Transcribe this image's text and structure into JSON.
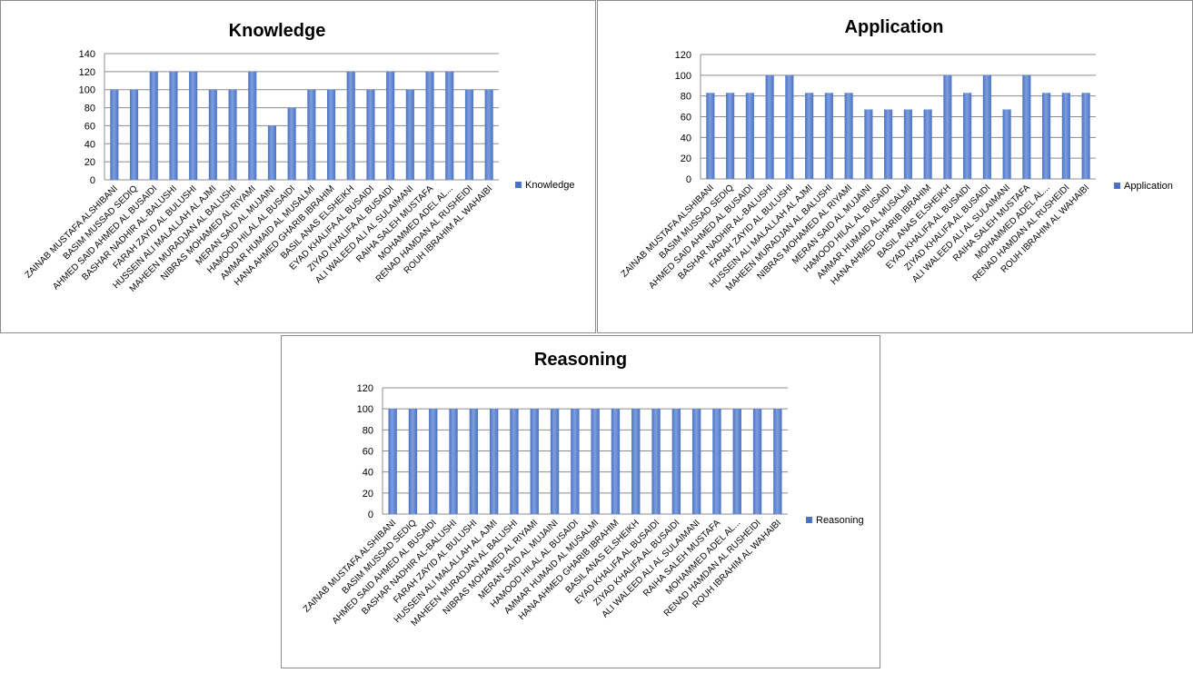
{
  "colors": {
    "bar": "#4a72c6",
    "bar_light": "#7f9fdc",
    "grid": "#8c8c8c"
  },
  "chart_data": [
    {
      "type": "bar",
      "title": "Knowledge",
      "series": [
        {
          "name": "Knowledge",
          "values": [
            100,
            100,
            120,
            120,
            120,
            100,
            100,
            120,
            60,
            80,
            100,
            100,
            120,
            100,
            120,
            100,
            120,
            120,
            100,
            100
          ]
        }
      ],
      "categories": [
        "ZAINAB MUSTAFA ALSHIBANI",
        "BASIM MUSSAD  SEDIQ",
        "AHMED SAID AHMED  AL BUSAIDI",
        "BASHAR NADHIR  AL-BALUSHI",
        "FARAH ZAYID AL BULUSHI",
        "HUSSEIN ALI MALALLAH AL AJMI",
        "MAHEEN MURADJAN  AL BALUSHI",
        "NIBRAS MOHAMED  AL RIYAMI",
        "MERAN SAID AL MUJAINI",
        "HAMOOD HILAL  AL BUSAIDI",
        "AMMAR HUMAID AL MUSALMI",
        "HANA AHMED GHARIB IBRAHIM",
        "BASIL ANAS  ELSHEIKH",
        "EYAD KHALIFA  AL BUSAIDI",
        "ZIYAD KHALIFA  AL BUSAIDI",
        "ALI WALEED ALI  AL SULAIMANI",
        "RAIHA SALEH MUSTAFA",
        "MOHAMMED ADEL  AL...",
        "RENAD HAMDAN  AL RUSHEIDI",
        "ROUH IBRAHIM  AL WAHAIBI"
      ],
      "y_ticks": [
        "0",
        "20",
        "40",
        "60",
        "80",
        "100",
        "120",
        "140"
      ],
      "ylim": [
        0,
        140
      ],
      "legend": "right",
      "legend_label": "Knowledge"
    },
    {
      "type": "bar",
      "title": "Application",
      "series": [
        {
          "name": "Application",
          "values": [
            83,
            83,
            83,
            100,
            100,
            83,
            83,
            83,
            67,
            67,
            67,
            67,
            100,
            83,
            100,
            67,
            100,
            83,
            83,
            83
          ]
        }
      ],
      "categories": [
        "ZAINAB MUSTAFA ALSHIBANI",
        "BASIM MUSSAD  SEDIQ",
        "AHMED SAID AHMED  AL BUSAIDI",
        "BASHAR NADHIR  AL-BALUSHI",
        "FARAH ZAYID AL BULUSHI",
        "HUSSEIN ALI MALALLAH AL AJMI",
        "MAHEEN MURADJAN  AL BALUSHI",
        "NIBRAS MOHAMED  AL RIYAMI",
        "MERAN SAID AL MUJAINI",
        "HAMOOD HILAL  AL BUSAIDI",
        "AMMAR HUMAID AL MUSALMI",
        "HANA AHMED GHARIB IBRAHIM",
        "BASIL ANAS  ELSHEIKH",
        "EYAD KHALIFA  AL BUSAIDI",
        "ZIYAD KHALIFA  AL BUSAIDI",
        "ALI WALEED ALI  AL SULAIMANI",
        "RAIHA SALEH MUSTAFA",
        "MOHAMMED ADEL  AL...",
        "RENAD HAMDAN  AL RUSHEIDI",
        "ROUH IBRAHIM  AL WAHAIBI"
      ],
      "y_ticks": [
        "0",
        "20",
        "40",
        "60",
        "80",
        "100",
        "120"
      ],
      "ylim": [
        0,
        120
      ],
      "legend": "right",
      "legend_label": "Application"
    },
    {
      "type": "bar",
      "title": "Reasoning",
      "series": [
        {
          "name": "Reasoning",
          "values": [
            100,
            100,
            100,
            100,
            100,
            100,
            100,
            100,
            100,
            100,
            100,
            100,
            100,
            100,
            100,
            100,
            100,
            100,
            100,
            100
          ]
        }
      ],
      "categories": [
        "ZAINAB MUSTAFA ALSHIBANI",
        "BASIM MUSSAD  SEDIQ",
        "AHMED SAID AHMED  AL BUSAIDI",
        "BASHAR NADHIR  AL-BALUSHI",
        "FARAH ZAYID AL BULUSHI",
        "HUSSEIN ALI MALALLAH AL AJMI",
        "MAHEEN MURADJAN  AL BALUSHI",
        "NIBRAS MOHAMED  AL RIYAMI",
        "MERAN SAID AL MUJAINI",
        "HAMOOD HILAL  AL BUSAIDI",
        "AMMAR HUMAID AL MUSALMI",
        "HANA AHMED GHARIB IBRAHIM",
        "BASIL ANAS  ELSHEIKH",
        "EYAD KHALIFA  AL BUSAIDI",
        "ZIYAD KHALIFA  AL BUSAIDI",
        "ALI WALEED ALI  AL SULAIMANI",
        "RAIHA SALEH MUSTAFA",
        "MOHAMMED ADEL  AL...",
        "RENAD HAMDAN  AL RUSHEIDI",
        "ROUH IBRAHIM  AL WAHAIBI"
      ],
      "y_ticks": [
        "0",
        "20",
        "40",
        "60",
        "80",
        "100",
        "120"
      ],
      "ylim": [
        0,
        120
      ],
      "legend": "right",
      "legend_label": "Reasoning"
    }
  ]
}
